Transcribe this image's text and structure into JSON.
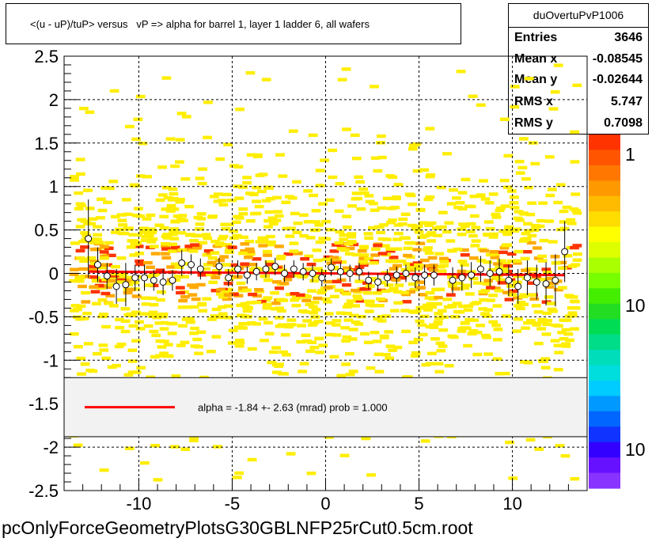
{
  "chart_data": {
    "type": "scatter",
    "title": "<(u - uP)/tuP> versus   vP => alpha for barrel 1, layer 1 ladder 6, all wafers",
    "xlabel": "",
    "ylabel": "",
    "xlim": [
      -14.0,
      14.0
    ],
    "ylim": [
      -2.5,
      2.5
    ],
    "x_ticks": [
      -10,
      -5,
      0,
      5,
      10
    ],
    "x_tick_labels": [
      "-10",
      "-5",
      "0",
      "5",
      "10"
    ],
    "y_ticks": [
      -2.5,
      -2,
      -1.5,
      -1,
      -0.5,
      0,
      0.5,
      1,
      1.5,
      2,
      2.5
    ],
    "y_tick_labels": [
      "-2.5",
      "-2",
      "-1.5",
      "-1",
      "-0.5",
      "0",
      "0.5",
      "1",
      "1.5",
      "2",
      "2.5"
    ],
    "grid": true,
    "series": [
      {
        "points": [
          {
            "x": -12.7,
            "y": 0.4,
            "err": 0.45
          },
          {
            "x": -12.2,
            "y": 0.1,
            "err": 0.2
          },
          {
            "x": -11.7,
            "y": -0.03,
            "err": 0.15
          },
          {
            "x": -11.2,
            "y": -0.15,
            "err": 0.2
          },
          {
            "x": -10.7,
            "y": -0.13,
            "err": 0.25
          },
          {
            "x": -10.2,
            "y": -0.05,
            "err": 0.15
          },
          {
            "x": -9.7,
            "y": -0.05,
            "err": 0.15
          },
          {
            "x": -9.2,
            "y": -0.08,
            "err": 0.12
          },
          {
            "x": -8.7,
            "y": -0.1,
            "err": 0.15
          },
          {
            "x": -8.2,
            "y": -0.08,
            "err": 0.12
          },
          {
            "x": -7.7,
            "y": 0.12,
            "err": 0.15
          },
          {
            "x": -7.2,
            "y": 0.1,
            "err": 0.12
          },
          {
            "x": -6.7,
            "y": 0.05,
            "err": 0.12
          },
          {
            "x": -5.7,
            "y": 0.08,
            "err": 0.1
          },
          {
            "x": -5.2,
            "y": -0.05,
            "err": 0.1
          },
          {
            "x": -4.7,
            "y": 0.05,
            "err": 0.1
          },
          {
            "x": -4.2,
            "y": -0.02,
            "err": 0.1
          },
          {
            "x": -3.7,
            "y": 0.02,
            "err": 0.1
          },
          {
            "x": -3.2,
            "y": 0.05,
            "err": 0.1
          },
          {
            "x": -2.7,
            "y": 0.08,
            "err": 0.1
          },
          {
            "x": -2.2,
            "y": 0.0,
            "err": 0.1
          },
          {
            "x": -1.7,
            "y": 0.05,
            "err": 0.1
          },
          {
            "x": -1.2,
            "y": 0.02,
            "err": 0.1
          },
          {
            "x": -0.7,
            "y": 0.0,
            "err": 0.1
          },
          {
            "x": -0.2,
            "y": -0.05,
            "err": 0.1
          },
          {
            "x": 0.3,
            "y": 0.07,
            "err": 0.1
          },
          {
            "x": 0.8,
            "y": 0.02,
            "err": 0.1
          },
          {
            "x": 1.3,
            "y": 0.0,
            "err": 0.1
          },
          {
            "x": 1.8,
            "y": 0.02,
            "err": 0.1
          },
          {
            "x": 2.3,
            "y": -0.08,
            "err": 0.1
          },
          {
            "x": 2.8,
            "y": -0.1,
            "err": 0.1
          },
          {
            "x": 3.3,
            "y": -0.05,
            "err": 0.1
          },
          {
            "x": 3.8,
            "y": -0.02,
            "err": 0.1
          },
          {
            "x": 4.3,
            "y": 0.0,
            "err": 0.1
          },
          {
            "x": 4.8,
            "y": -0.05,
            "err": 0.12
          },
          {
            "x": 5.3,
            "y": -0.02,
            "err": 0.12
          },
          {
            "x": 5.8,
            "y": -0.02,
            "err": 0.12
          },
          {
            "x": 6.8,
            "y": -0.08,
            "err": 0.15
          },
          {
            "x": 7.3,
            "y": -0.05,
            "err": 0.15
          },
          {
            "x": 7.8,
            "y": -0.02,
            "err": 0.15
          },
          {
            "x": 8.3,
            "y": 0.05,
            "err": 0.15
          },
          {
            "x": 8.8,
            "y": 0.0,
            "err": 0.15
          },
          {
            "x": 9.3,
            "y": 0.02,
            "err": 0.15
          },
          {
            "x": 9.8,
            "y": -0.08,
            "err": 0.18
          },
          {
            "x": 10.3,
            "y": -0.15,
            "err": 0.2
          },
          {
            "x": 10.8,
            "y": -0.05,
            "err": 0.2
          },
          {
            "x": 11.3,
            "y": -0.1,
            "err": 0.2
          },
          {
            "x": 11.8,
            "y": -0.12,
            "err": 0.25
          },
          {
            "x": 12.3,
            "y": -0.08,
            "err": 0.3
          },
          {
            "x": 12.8,
            "y": 0.25,
            "err": 0.35
          }
        ]
      }
    ],
    "fit_line": {
      "x": [
        -12.7,
        12.8
      ],
      "y": [
        0.02,
        -0.02
      ]
    },
    "legend": {
      "text": "alpha =   -1.84 +-  2.63 (mrad) prob =  1.000",
      "y_from": -1.2,
      "y_to": -1.88
    },
    "palette_labels": [
      "1",
      "10",
      "10"
    ]
  },
  "stats": {
    "name": "duOvertuPvP1006",
    "entries_label": "Entries",
    "entries": "3646",
    "mean_x_label": "Mean x",
    "mean_x": "-0.08545",
    "mean_y_label": "Mean y",
    "mean_y": "-0.02644",
    "rms_x_label": "RMS x",
    "rms_x": "5.747",
    "rms_y_label": "RMS y",
    "rms_y": "0.7098"
  },
  "footer": "pcOnlyForceGeometryPlotsG30GBLNFP25rCut0.5cm.root",
  "colors": {
    "fit": "#ff0000",
    "marker_edge": "#000000",
    "hist_low": "#ffee00",
    "hist_mid": "#ffaa00",
    "hist_high": "#ff3300"
  }
}
